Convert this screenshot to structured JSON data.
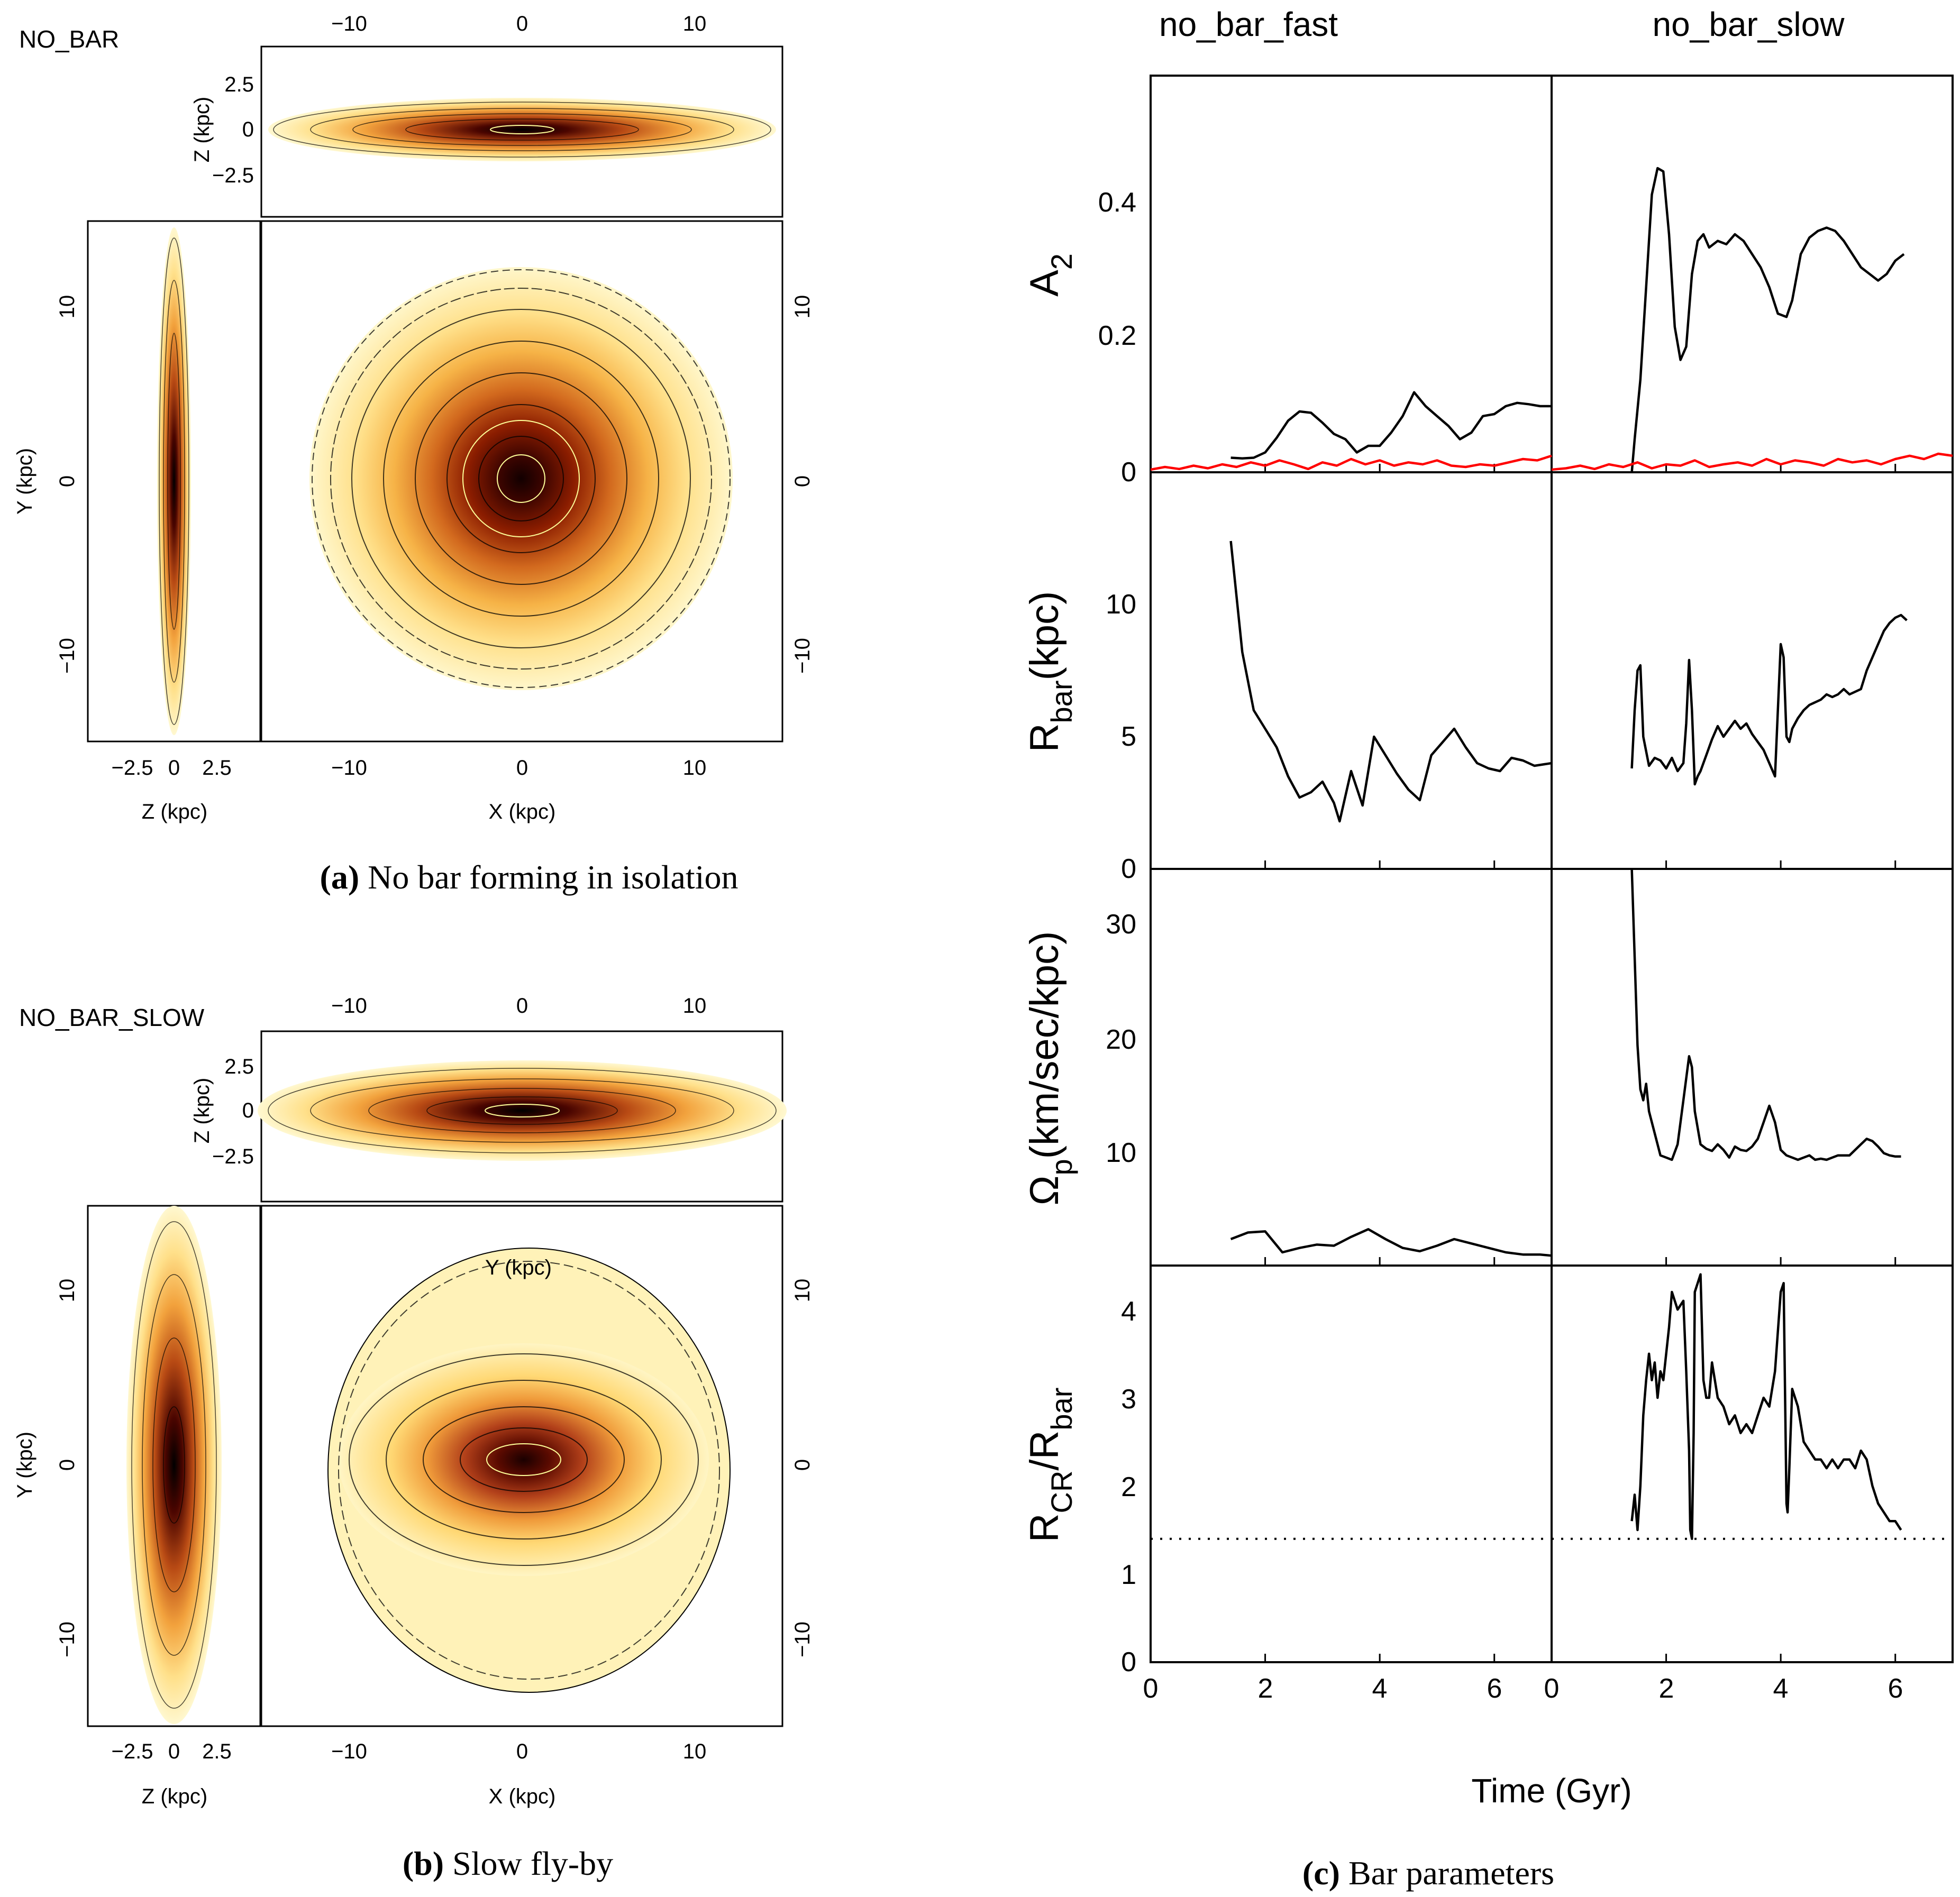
{
  "colors": {
    "frame": "#000000",
    "line_a2": "#000000",
    "line_m1": "#ff0000",
    "density_core": "#2a0000",
    "density_mid": "#d2691e",
    "density_outer": "#fff3b0"
  },
  "panel_a": {
    "label": "NO_BAR",
    "caption_bold": "(a)",
    "caption_text": " No bar forming in isolation",
    "x_axis_label": "X (kpc)",
    "y_axis_label": "Y (kpc)",
    "z_axis_label": "Z (kpc)",
    "top_ticks": [
      "−10",
      "0",
      "10"
    ],
    "bottom_ticks": [
      "−10",
      "0",
      "10"
    ],
    "right_ticks": [
      "10",
      "0",
      "−10"
    ],
    "left_ticks": [
      "10",
      "0",
      "−10"
    ],
    "z_ticks": [
      "2.5",
      "0",
      "−2.5"
    ],
    "side_z_ticks": [
      "−2.5",
      "0",
      "2.5"
    ]
  },
  "panel_b": {
    "label": "NO_BAR_SLOW",
    "caption_bold": "(b)",
    "caption_text": " Slow fly-by",
    "x_axis_label": "X (kpc)",
    "y_axis_label": "Y (kpc)",
    "z_axis_label": "Z (kpc)",
    "overlay_label": "Y (kpc)",
    "top_ticks": [
      "−10",
      "0",
      "10"
    ],
    "bottom_ticks": [
      "−10",
      "0",
      "10"
    ],
    "right_ticks": [
      "10",
      "0",
      "−10"
    ],
    "left_ticks": [
      "10",
      "0",
      "−10"
    ],
    "z_ticks": [
      "2.5",
      "0",
      "−2.5"
    ],
    "side_z_ticks": [
      "−2.5",
      "0",
      "2.5"
    ]
  },
  "panel_c": {
    "caption_bold": "(c)",
    "caption_text": " Bar parameters",
    "col_titles": [
      "no_bar_fast",
      "no_bar_slow"
    ],
    "x_label": "Time (Gyr)",
    "x_ticks": [
      "0",
      "2",
      "4",
      "6"
    ],
    "row_labels": {
      "a2": {
        "main": "A",
        "sub": "2"
      },
      "rbar": {
        "main": "R",
        "sub": "bar",
        "tail": "(kpc)"
      },
      "omega": {
        "main": "Ω",
        "sub": "p",
        "tail": "(km/sec/kpc)"
      },
      "ratio": {
        "main": "R",
        "sub": "CR",
        "mid": "/R",
        "sub2": "bar"
      }
    },
    "a2_ticks": [
      "0",
      "0.2",
      "0.4"
    ],
    "rbar_ticks": [
      "0",
      "5",
      "10"
    ],
    "omega_ticks": [
      "10",
      "20",
      "30"
    ],
    "ratio_ticks": [
      "0",
      "1",
      "2",
      "3",
      "4"
    ]
  },
  "chart_data": [
    {
      "type": "line",
      "title": "no_bar_fast",
      "ylabel": "A_2",
      "xlabel": "Time (Gyr)",
      "xlim": [
        0,
        7
      ],
      "ylim": [
        0,
        0.6
      ],
      "series": [
        {
          "name": "A2",
          "x": [
            1.4,
            1.6,
            1.8,
            2.0,
            2.2,
            2.4,
            2.6,
            2.8,
            3.0,
            3.2,
            3.4,
            3.6,
            3.8,
            4.0,
            4.2,
            4.4,
            4.6,
            4.8,
            5.0,
            5.2,
            5.4,
            5.6,
            5.8,
            6.0,
            6.2,
            6.4,
            6.6,
            6.8,
            7.0
          ],
          "y": [
            0.022,
            0.021,
            0.022,
            0.03,
            0.052,
            0.078,
            0.092,
            0.09,
            0.075,
            0.058,
            0.05,
            0.03,
            0.04,
            0.04,
            0.06,
            0.085,
            0.121,
            0.1,
            0.085,
            0.07,
            0.05,
            0.06,
            0.085,
            0.088,
            0.1,
            0.105,
            0.103,
            0.1,
            0.1
          ]
        },
        {
          "name": "m=1 (red)",
          "x": [
            0,
            0.25,
            0.5,
            0.75,
            1.0,
            1.25,
            1.5,
            1.75,
            2.0,
            2.25,
            2.5,
            2.75,
            3.0,
            3.25,
            3.5,
            3.75,
            4.0,
            4.25,
            4.5,
            4.75,
            5.0,
            5.25,
            5.5,
            5.75,
            6.0,
            6.25,
            6.5,
            6.75,
            7.0
          ],
          "y": [
            0.004,
            0.008,
            0.005,
            0.01,
            0.006,
            0.012,
            0.008,
            0.015,
            0.01,
            0.018,
            0.012,
            0.005,
            0.015,
            0.01,
            0.02,
            0.012,
            0.018,
            0.01,
            0.015,
            0.012,
            0.018,
            0.01,
            0.008,
            0.012,
            0.01,
            0.015,
            0.02,
            0.018,
            0.025
          ]
        }
      ]
    },
    {
      "type": "line",
      "title": "no_bar_slow",
      "ylabel": "A_2",
      "xlabel": "Time (Gyr)",
      "xlim": [
        0,
        7
      ],
      "ylim": [
        0,
        0.6
      ],
      "series": [
        {
          "name": "A2",
          "x": [
            1.4,
            1.45,
            1.55,
            1.65,
            1.75,
            1.85,
            1.95,
            2.05,
            2.15,
            2.25,
            2.35,
            2.45,
            2.55,
            2.65,
            2.75,
            2.9,
            3.05,
            3.2,
            3.35,
            3.5,
            3.65,
            3.8,
            3.95,
            4.1,
            4.2,
            4.35,
            4.5,
            4.65,
            4.8,
            4.95,
            5.1,
            5.25,
            5.4,
            5.55,
            5.7,
            5.85,
            6.0,
            6.15
          ],
          "y": [
            0.0,
            0.05,
            0.14,
            0.28,
            0.42,
            0.46,
            0.455,
            0.36,
            0.22,
            0.17,
            0.19,
            0.3,
            0.35,
            0.36,
            0.34,
            0.35,
            0.345,
            0.36,
            0.35,
            0.33,
            0.31,
            0.28,
            0.24,
            0.235,
            0.26,
            0.33,
            0.355,
            0.365,
            0.37,
            0.365,
            0.35,
            0.33,
            0.31,
            0.3,
            0.29,
            0.3,
            0.32,
            0.33
          ]
        },
        {
          "name": "m=1 (red)",
          "x": [
            0,
            0.25,
            0.5,
            0.75,
            1.0,
            1.25,
            1.5,
            1.75,
            2.0,
            2.25,
            2.5,
            2.75,
            3.0,
            3.25,
            3.5,
            3.75,
            4.0,
            4.25,
            4.5,
            4.75,
            5.0,
            5.25,
            5.5,
            5.75,
            6.0,
            6.25,
            6.5,
            6.75,
            7.0
          ],
          "y": [
            0.004,
            0.006,
            0.01,
            0.005,
            0.012,
            0.008,
            0.015,
            0.006,
            0.012,
            0.01,
            0.018,
            0.008,
            0.012,
            0.015,
            0.01,
            0.02,
            0.012,
            0.018,
            0.015,
            0.01,
            0.02,
            0.015,
            0.018,
            0.012,
            0.02,
            0.025,
            0.02,
            0.028,
            0.025
          ]
        }
      ]
    },
    {
      "type": "line",
      "title": "no_bar_fast",
      "ylabel": "R_bar (kpc)",
      "xlabel": "Time (Gyr)",
      "xlim": [
        0,
        7
      ],
      "ylim": [
        0,
        15
      ],
      "series": [
        {
          "name": "Rbar",
          "x": [
            1.4,
            1.6,
            1.8,
            2.0,
            2.2,
            2.4,
            2.6,
            2.8,
            3.0,
            3.2,
            3.3,
            3.5,
            3.7,
            3.9,
            4.1,
            4.3,
            4.5,
            4.7,
            4.9,
            5.1,
            5.3,
            5.5,
            5.7,
            5.9,
            6.1,
            6.3,
            6.5,
            6.7,
            7.0
          ],
          "y": [
            12.4,
            8.2,
            6.0,
            5.3,
            4.6,
            3.5,
            2.7,
            2.9,
            3.3,
            2.5,
            1.8,
            3.7,
            2.4,
            5.0,
            4.3,
            3.6,
            3.0,
            2.6,
            4.3,
            4.8,
            5.3,
            4.6,
            4.0,
            3.8,
            3.7,
            4.2,
            4.1,
            3.9,
            4.0
          ]
        }
      ]
    },
    {
      "type": "line",
      "title": "no_bar_slow",
      "ylabel": "R_bar (kpc)",
      "xlabel": "Time (Gyr)",
      "xlim": [
        0,
        7
      ],
      "ylim": [
        0,
        15
      ],
      "series": [
        {
          "name": "Rbar",
          "x": [
            1.4,
            1.45,
            1.5,
            1.55,
            1.6,
            1.7,
            1.8,
            1.9,
            2.0,
            2.1,
            2.2,
            2.3,
            2.35,
            2.4,
            2.45,
            2.5,
            2.55,
            2.6,
            2.7,
            2.8,
            2.9,
            3.0,
            3.1,
            3.2,
            3.3,
            3.4,
            3.5,
            3.6,
            3.7,
            3.8,
            3.9,
            4.0,
            4.05,
            4.1,
            4.15,
            4.2,
            4.3,
            4.4,
            4.5,
            4.6,
            4.7,
            4.8,
            4.9,
            5.0,
            5.1,
            5.2,
            5.3,
            5.4,
            5.5,
            5.6,
            5.7,
            5.8,
            5.9,
            6.0,
            6.1,
            6.2
          ],
          "y": [
            3.8,
            6.0,
            7.5,
            7.7,
            5.0,
            3.9,
            4.2,
            4.1,
            3.8,
            4.2,
            3.7,
            4.0,
            5.5,
            7.9,
            6.0,
            3.2,
            3.5,
            3.7,
            4.3,
            4.9,
            5.4,
            5.0,
            5.3,
            5.6,
            5.3,
            5.5,
            5.1,
            4.8,
            4.5,
            4.0,
            3.5,
            8.5,
            8.0,
            5.0,
            4.8,
            5.3,
            5.7,
            6.0,
            6.2,
            6.3,
            6.4,
            6.6,
            6.5,
            6.6,
            6.8,
            6.6,
            6.7,
            6.8,
            7.5,
            8.0,
            8.5,
            9.0,
            9.3,
            9.5,
            9.6,
            9.4
          ]
        }
      ]
    },
    {
      "type": "line",
      "title": "no_bar_fast",
      "ylabel": "Omega_p (km/sec/kpc)",
      "xlabel": "Time (Gyr)",
      "xlim": [
        0,
        7
      ],
      "ylim": [
        0,
        36
      ],
      "series": [
        {
          "name": "Omega_p",
          "x": [
            1.4,
            1.7,
            2.0,
            2.3,
            2.6,
            2.9,
            3.2,
            3.5,
            3.8,
            4.1,
            4.4,
            4.7,
            5.0,
            5.3,
            5.6,
            5.9,
            6.2,
            6.5,
            6.8,
            7.0
          ],
          "y": [
            2.4,
            3.0,
            3.1,
            1.2,
            1.6,
            1.9,
            1.8,
            2.6,
            3.3,
            2.4,
            1.6,
            1.3,
            1.8,
            2.4,
            2.0,
            1.6,
            1.2,
            1.0,
            1.0,
            0.9
          ]
        }
      ]
    },
    {
      "type": "line",
      "title": "no_bar_slow",
      "ylabel": "Omega_p (km/sec/kpc)",
      "xlabel": "Time (Gyr)",
      "xlim": [
        0,
        7
      ],
      "ylim": [
        0,
        36
      ],
      "series": [
        {
          "name": "Omega_p",
          "x": [
            1.4,
            1.45,
            1.5,
            1.55,
            1.6,
            1.65,
            1.7,
            1.8,
            1.9,
            2.0,
            2.1,
            2.2,
            2.3,
            2.4,
            2.45,
            2.5,
            2.6,
            2.7,
            2.8,
            2.9,
            3.0,
            3.1,
            3.2,
            3.3,
            3.4,
            3.5,
            3.6,
            3.7,
            3.8,
            3.9,
            4.0,
            4.1,
            4.2,
            4.3,
            4.4,
            4.5,
            4.6,
            4.7,
            4.8,
            4.9,
            5.0,
            5.1,
            5.2,
            5.3,
            5.4,
            5.5,
            5.6,
            5.7,
            5.8,
            5.9,
            6.0,
            6.1
          ],
          "y": [
            36,
            28,
            20,
            16,
            15,
            16.5,
            14,
            12,
            10,
            9.8,
            9.6,
            11,
            15,
            19,
            18,
            14,
            11,
            10.6,
            10.4,
            11,
            10.5,
            9.8,
            10.8,
            10.5,
            10.4,
            10.8,
            11.5,
            13,
            14.5,
            13,
            10.5,
            10,
            9.8,
            9.6,
            9.8,
            10,
            9.6,
            9.7,
            9.6,
            9.8,
            10,
            10,
            10,
            10.5,
            11,
            11.5,
            11.3,
            10.8,
            10.2,
            10,
            9.9,
            9.9
          ]
        }
      ]
    },
    {
      "type": "line",
      "title": "no_bar_fast",
      "ylabel": "R_CR / R_bar",
      "xlabel": "Time (Gyr)",
      "xlim": [
        0,
        7
      ],
      "ylim": [
        0,
        4.5
      ],
      "series": [
        {
          "name": "reference",
          "x": [
            0,
            7
          ],
          "y": [
            1.4,
            1.4
          ],
          "style": "dotted"
        }
      ]
    },
    {
      "type": "line",
      "title": "no_bar_slow",
      "ylabel": "R_CR / R_bar",
      "xlabel": "Time (Gyr)",
      "xlim": [
        0,
        7
      ],
      "ylim": [
        0,
        4.5
      ],
      "series": [
        {
          "name": "R_CR/R_bar",
          "x": [
            1.4,
            1.45,
            1.5,
            1.55,
            1.6,
            1.65,
            1.7,
            1.75,
            1.8,
            1.85,
            1.9,
            1.95,
            2.0,
            2.05,
            2.1,
            2.2,
            2.3,
            2.35,
            2.4,
            2.42,
            2.45,
            2.48,
            2.5,
            2.55,
            2.6,
            2.65,
            2.7,
            2.75,
            2.8,
            2.9,
            3.0,
            3.1,
            3.2,
            3.3,
            3.4,
            3.5,
            3.6,
            3.7,
            3.8,
            3.9,
            4.0,
            4.05,
            4.1,
            4.12,
            4.15,
            4.2,
            4.3,
            4.4,
            4.5,
            4.6,
            4.7,
            4.8,
            4.9,
            5.0,
            5.1,
            5.2,
            5.3,
            5.4,
            5.5,
            5.6,
            5.7,
            5.8,
            5.9,
            6.0,
            6.1
          ],
          "y": [
            1.6,
            1.9,
            1.5,
            2.0,
            2.8,
            3.2,
            3.5,
            3.2,
            3.4,
            3.0,
            3.3,
            3.2,
            3.5,
            3.8,
            4.2,
            4.0,
            4.1,
            3.3,
            2.4,
            1.5,
            1.4,
            2.6,
            4.2,
            4.3,
            4.4,
            3.2,
            3.0,
            3.0,
            3.4,
            3.0,
            2.9,
            2.7,
            2.8,
            2.6,
            2.7,
            2.6,
            2.8,
            3.0,
            2.9,
            3.3,
            4.2,
            4.3,
            1.8,
            1.7,
            2.2,
            3.1,
            2.9,
            2.5,
            2.4,
            2.3,
            2.3,
            2.2,
            2.3,
            2.2,
            2.3,
            2.3,
            2.2,
            2.4,
            2.3,
            2.0,
            1.8,
            1.7,
            1.6,
            1.6,
            1.5
          ]
        },
        {
          "name": "reference",
          "x": [
            0,
            7
          ],
          "y": [
            1.4,
            1.4
          ],
          "style": "dotted"
        }
      ]
    }
  ]
}
